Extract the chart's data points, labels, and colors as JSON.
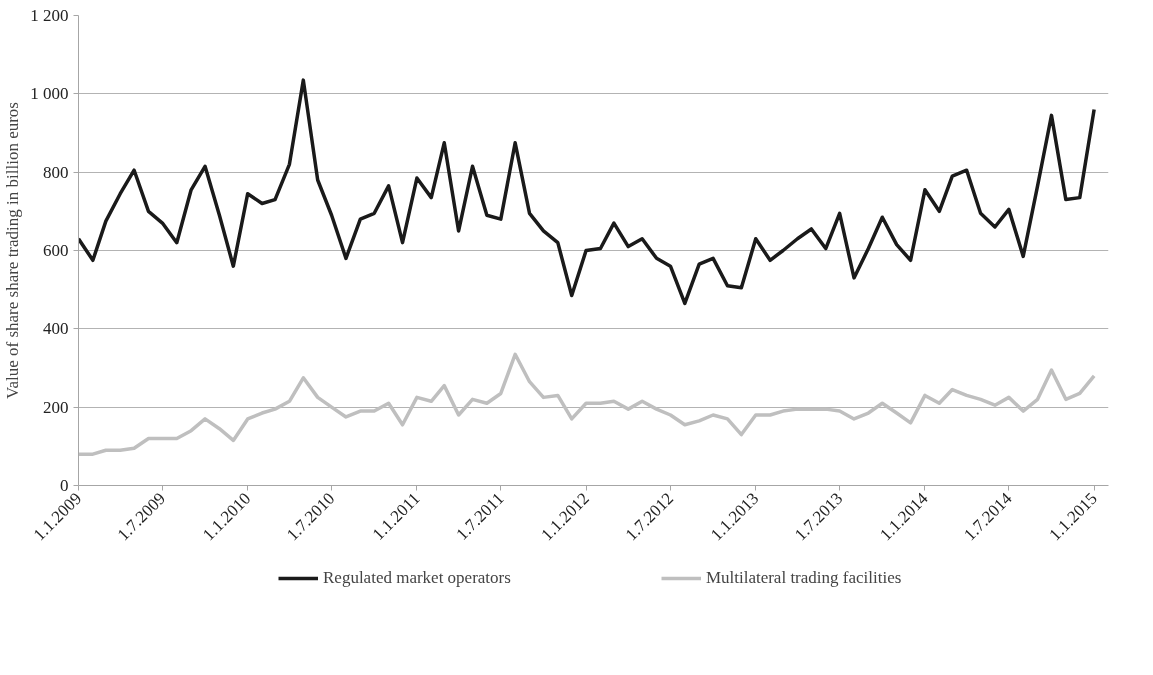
{
  "chart_data": {
    "type": "line",
    "ylabel": "Value of share share trading in billion euros",
    "x": [
      "2009-01",
      "2009-02",
      "2009-03",
      "2009-04",
      "2009-05",
      "2009-06",
      "2009-07",
      "2009-08",
      "2009-09",
      "2009-10",
      "2009-11",
      "2009-12",
      "2010-01",
      "2010-02",
      "2010-03",
      "2010-04",
      "2010-05",
      "2010-06",
      "2010-07",
      "2010-08",
      "2010-09",
      "2010-10",
      "2010-11",
      "2010-12",
      "2011-01",
      "2011-02",
      "2011-03",
      "2011-04",
      "2011-05",
      "2011-06",
      "2011-07",
      "2011-08",
      "2011-09",
      "2011-10",
      "2011-11",
      "2011-12",
      "2012-01",
      "2012-02",
      "2012-03",
      "2012-04",
      "2012-05",
      "2012-06",
      "2012-07",
      "2012-08",
      "2012-09",
      "2012-10",
      "2012-11",
      "2012-12",
      "2013-01",
      "2013-02",
      "2013-03",
      "2013-04",
      "2013-05",
      "2013-06",
      "2013-07",
      "2013-08",
      "2013-09",
      "2013-10",
      "2013-11",
      "2013-12",
      "2014-01",
      "2014-02",
      "2014-03",
      "2014-04",
      "2014-05",
      "2014-06",
      "2014-07",
      "2014-08",
      "2014-09",
      "2014-10",
      "2014-11",
      "2014-12",
      "2015-01"
    ],
    "series": [
      {
        "name": "Regulated market operators",
        "color": "#1a1a1a",
        "values": [
          630,
          575,
          675,
          745,
          805,
          700,
          670,
          620,
          755,
          815,
          690,
          560,
          745,
          720,
          730,
          820,
          1035,
          780,
          690,
          580,
          680,
          695,
          765,
          620,
          785,
          735,
          875,
          650,
          815,
          690,
          680,
          875,
          695,
          650,
          620,
          485,
          600,
          605,
          670,
          610,
          630,
          580,
          560,
          465,
          565,
          580,
          510,
          505,
          630,
          575,
          600,
          630,
          655,
          605,
          695,
          530,
          605,
          685,
          615,
          575,
          755,
          700,
          790,
          805,
          695,
          660,
          705,
          585,
          765,
          945,
          730,
          735,
          960
        ]
      },
      {
        "name": "Multilateral trading facilities",
        "color": "#bfbfbf",
        "values": [
          80,
          80,
          90,
          90,
          95,
          120,
          120,
          120,
          140,
          170,
          145,
          115,
          170,
          185,
          195,
          215,
          275,
          225,
          200,
          175,
          190,
          190,
          210,
          155,
          225,
          215,
          255,
          180,
          220,
          210,
          235,
          335,
          265,
          225,
          230,
          170,
          210,
          210,
          215,
          195,
          215,
          195,
          180,
          155,
          165,
          180,
          170,
          130,
          180,
          180,
          190,
          195,
          195,
          195,
          190,
          170,
          185,
          210,
          185,
          160,
          230,
          210,
          245,
          230,
          220,
          205,
          225,
          190,
          220,
          295,
          220,
          235,
          280
        ]
      }
    ],
    "xlim": [
      "2009-01",
      "2015-02"
    ],
    "xticks": [
      {
        "value": "2009-01-01",
        "label": "1.1.2009"
      },
      {
        "value": "2009-07-01",
        "label": "1.7.2009"
      },
      {
        "value": "2010-01-01",
        "label": "1.1.2010"
      },
      {
        "value": "2010-07-01",
        "label": "1.7.2010"
      },
      {
        "value": "2011-01-01",
        "label": "1.1.2011"
      },
      {
        "value": "2011-07-01",
        "label": "1.7.2011"
      },
      {
        "value": "2012-01-01",
        "label": "1.1.2012"
      },
      {
        "value": "2012-07-01",
        "label": "1.7.2012"
      },
      {
        "value": "2013-01-01",
        "label": "1.1.2013"
      },
      {
        "value": "2013-07-01",
        "label": "1.7.2013"
      },
      {
        "value": "2014-01-01",
        "label": "1.1.2014"
      },
      {
        "value": "2014-07-01",
        "label": "1.7.2014"
      },
      {
        "value": "2015-01-01",
        "label": "1.1.2015"
      }
    ],
    "ylim": [
      0,
      1200
    ],
    "yticks": [
      0,
      200,
      400,
      600,
      {
        "value": 800,
        "label": "800"
      },
      {
        "value": 1000,
        "label": "1 000"
      },
      {
        "value": 1200,
        "label": "1 200"
      }
    ],
    "grid": "y",
    "legend": "bottom",
    "line_style": "solid",
    "marker": "none"
  }
}
